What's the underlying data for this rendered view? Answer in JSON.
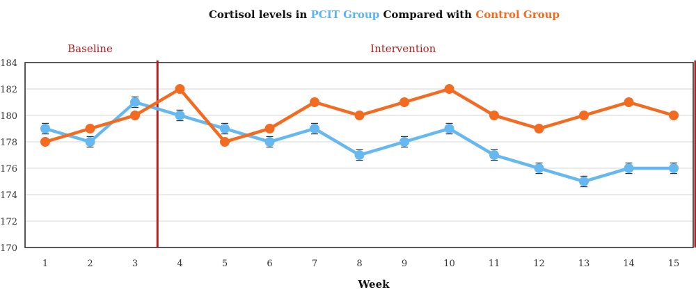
{
  "chart_data": {
    "type": "line",
    "title_parts": [
      {
        "text": "Cortisol levels in ",
        "color": "#111111"
      },
      {
        "text": "PCIT Group",
        "color": "#5bb4ee"
      },
      {
        "text": " Compared with ",
        "color": "#111111"
      },
      {
        "text": "Control Group",
        "color": "#f26b21"
      }
    ],
    "xlabel": "Week",
    "ylabel": "",
    "x": [
      1,
      2,
      3,
      4,
      5,
      6,
      7,
      8,
      9,
      10,
      11,
      12,
      13,
      14,
      15
    ],
    "x_ticks": [
      "1",
      "2",
      "3",
      "4",
      "5",
      "6",
      "7",
      "8",
      "9",
      "10",
      "11",
      "12",
      "13",
      "14",
      "15"
    ],
    "ylim": [
      170,
      184
    ],
    "y_ticks": [
      "170",
      "172",
      "174",
      "176",
      "178",
      "180",
      "182",
      "184"
    ],
    "y_tick_values": [
      170,
      172,
      174,
      176,
      178,
      180,
      182,
      184
    ],
    "grid": true,
    "legend": "none",
    "phases": [
      {
        "label": "Baseline",
        "from": 1,
        "to": 3
      },
      {
        "label": "Intervention",
        "from": 4,
        "to": 15
      }
    ],
    "phase_color": "#b41e1e",
    "series": [
      {
        "color": "#66b8f0",
        "values": [
          179,
          178,
          181,
          180,
          179,
          178,
          179,
          177,
          178,
          179,
          177,
          176,
          175,
          176,
          176
        ],
        "error": 0.4
      },
      {
        "color": "#f26b21",
        "values": [
          178,
          179,
          180,
          182,
          178,
          179,
          181,
          180,
          181,
          182,
          180,
          179,
          180,
          181,
          180
        ]
      }
    ]
  }
}
